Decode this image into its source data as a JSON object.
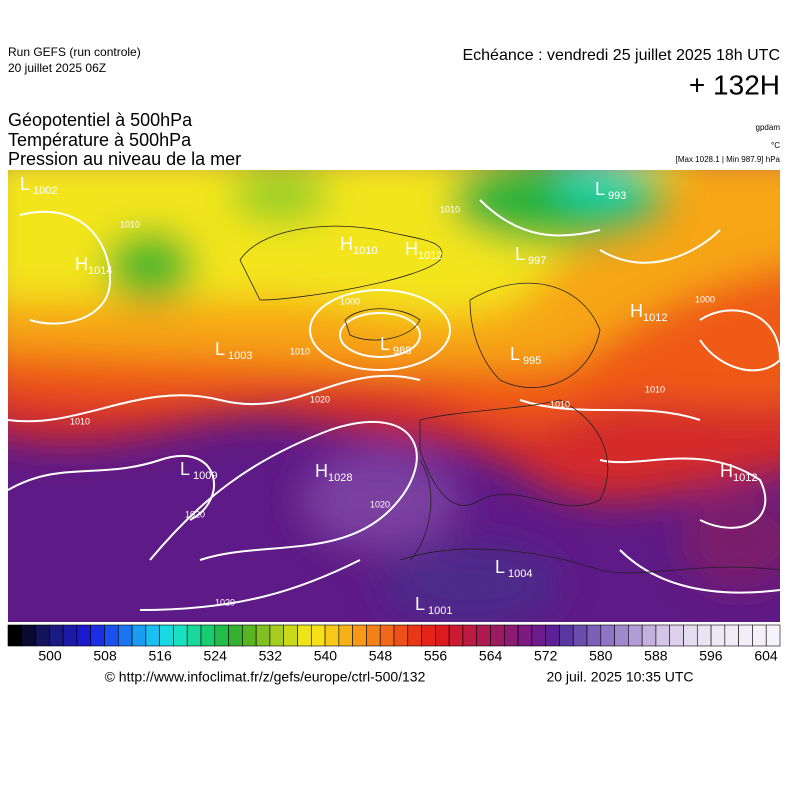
{
  "header": {
    "run": "Run GEFS (run controle)",
    "run_date": "20 juillet 2025 06Z",
    "valid": "Echéance : vendredi 25 juillet 2025 18h UTC",
    "lead": "+ 132H"
  },
  "titles": [
    "Géopotentiel à 500hPa",
    "Température à 500hPa",
    "Pression au niveau de la mer"
  ],
  "units": {
    "geopotential": "gpdam",
    "temperature": "°C",
    "pressure": "[Max 1028.1 | Min 987.9] hPa"
  },
  "pressure_centers": [
    {
      "type": "L",
      "value": 1002
    },
    {
      "type": "H",
      "value": 1014
    },
    {
      "type": "H",
      "value": 1010
    },
    {
      "type": "H",
      "value": 1012
    },
    {
      "type": "L",
      "value": 993
    },
    {
      "type": "L",
      "value": 997
    },
    {
      "type": "L",
      "value": 988
    },
    {
      "type": "L",
      "value": 1003
    },
    {
      "type": "H",
      "value": 1012
    },
    {
      "type": "L",
      "value": 995
    },
    {
      "type": "L",
      "value": 1009
    },
    {
      "type": "H",
      "value": 1028
    },
    {
      "type": "L",
      "value": 1004
    },
    {
      "type": "L",
      "value": 1001
    },
    {
      "type": "H",
      "value": 1012
    }
  ],
  "isobar_labels": [
    1010,
    1010,
    1000,
    1010,
    1020,
    1010,
    1010,
    1010,
    1000,
    1020,
    1020,
    1020
  ],
  "colorbar": {
    "ticks": [
      500,
      508,
      516,
      524,
      532,
      540,
      548,
      556,
      564,
      572,
      580,
      588,
      596,
      604
    ]
  },
  "footer": {
    "url": "© http://www.infoclimat.fr/z/gefs/europe/ctrl-500/132",
    "generated": "20 juil. 2025 10:35 UTC"
  }
}
